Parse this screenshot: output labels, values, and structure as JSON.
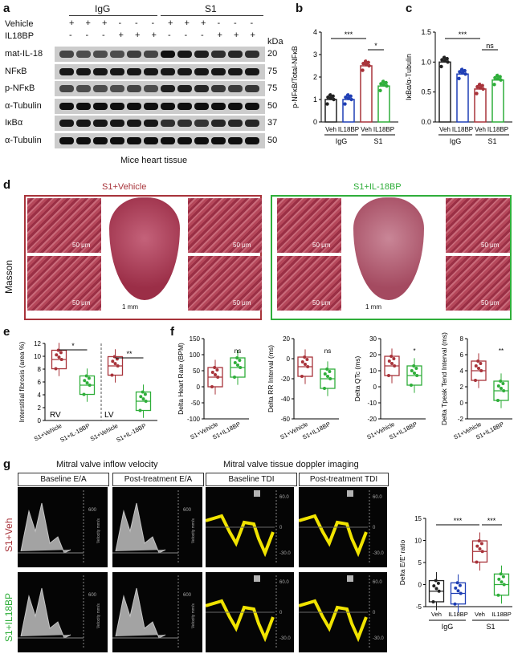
{
  "panels": {
    "a": "a",
    "b": "b",
    "c": "c",
    "d": "d",
    "e": "e",
    "f": "f",
    "g": "g"
  },
  "panel_a": {
    "group_igg": "IgG",
    "group_s1": "S1",
    "row_vehicle": "Vehicle",
    "row_il18bp": "IL18BP",
    "vehicle_signs": [
      "+",
      "+",
      "+",
      "-",
      "-",
      "-",
      "+",
      "+",
      "+",
      "-",
      "-",
      "-"
    ],
    "il18bp_signs": [
      "-",
      "-",
      "-",
      "+",
      "+",
      "+",
      "-",
      "-",
      "-",
      "+",
      "+",
      "+"
    ],
    "kda": "kDa",
    "blots": [
      {
        "label": "mat-IL-18",
        "kda": "20"
      },
      {
        "label": "NFκB",
        "kda": "75"
      },
      {
        "label": "p-NFκB",
        "kda": "75"
      },
      {
        "label": "α-Tubulin",
        "kda": "50"
      },
      {
        "label": "IκBα",
        "kda": "37"
      },
      {
        "label": "α-Tubulin",
        "kda": "50"
      }
    ],
    "caption": "Mice heart tissue"
  },
  "chart_data": [
    {
      "id": "b",
      "type": "bar",
      "ylabel": "p-NFκB/Total-NFκB",
      "ylim": [
        0,
        4
      ],
      "yticks": [
        "0",
        "1",
        "2",
        "3",
        "4"
      ],
      "categories": [
        "Veh",
        "IL18BP",
        "Veh",
        "IL18BP"
      ],
      "groups": [
        "IgG",
        "S1"
      ],
      "values": [
        1.0,
        1.0,
        2.5,
        1.6
      ],
      "sig": [
        "***",
        "*"
      ]
    },
    {
      "id": "c",
      "type": "bar",
      "ylabel": "IκBα/α-Tubulin",
      "ylim": [
        0,
        1.5
      ],
      "yticks": [
        "0.0",
        "0.5",
        "1.0",
        "1.5"
      ],
      "categories": [
        "Veh",
        "IL18BP",
        "Veh",
        "IL18BP"
      ],
      "groups": [
        "IgG",
        "S1"
      ],
      "values": [
        1.0,
        0.8,
        0.55,
        0.7
      ],
      "sig": [
        "***",
        "ns"
      ]
    },
    {
      "id": "e",
      "type": "box",
      "ylabel": "Interstitial fibrosis (area %)",
      "ylim": [
        0,
        12
      ],
      "yticks": [
        "0",
        "2",
        "4",
        "6",
        "8",
        "10",
        "12"
      ],
      "categories": [
        "S1+Vehicle",
        "S1+IL-18BP",
        "S1+Vehicle",
        "S1+IL-18BP"
      ],
      "regions": [
        "RV",
        "LV"
      ],
      "medians": [
        9.5,
        5.5,
        8.5,
        3.0
      ],
      "sig": [
        "*",
        "**"
      ]
    },
    {
      "id": "f1",
      "type": "box",
      "ylabel": "Delta Heart Rate (BPM)",
      "ylim": [
        -100,
        150
      ],
      "yticks": [
        "150",
        "100",
        "50",
        "0",
        "-50",
        "-100"
      ],
      "categories": [
        "S1+Vehicle",
        "S1+IL18BP"
      ],
      "medians": [
        30,
        60
      ],
      "sig": "ns"
    },
    {
      "id": "f2",
      "type": "box",
      "ylabel": "Delta RR Interval (ms)",
      "ylim": [
        -60,
        20
      ],
      "yticks": [
        "20",
        "0",
        "-20",
        "-40",
        "-60"
      ],
      "categories": [
        "S1+Vehicle",
        "S1+IL18BP"
      ],
      "medians": [
        -8,
        -20
      ],
      "sig": "ns"
    },
    {
      "id": "f3",
      "type": "box",
      "ylabel": "Delta QTc (ms)",
      "ylim": [
        -20,
        30
      ],
      "yticks": [
        "30",
        "20",
        "10",
        "0",
        "-10",
        "-20"
      ],
      "categories": [
        "S1+Vehicle",
        "S1+IL18BP"
      ],
      "medians": [
        13,
        7
      ],
      "sig": "*"
    },
    {
      "id": "f4",
      "type": "box",
      "ylabel": "Delta Tpeak Tend Interval (ms)",
      "ylim": [
        -2,
        8
      ],
      "yticks": [
        "8",
        "6",
        "4",
        "2",
        "0",
        "-2"
      ],
      "categories": [
        "S1+Vehicle",
        "S1+IL18BP"
      ],
      "medians": [
        4,
        1.5
      ],
      "sig": "**"
    },
    {
      "id": "g",
      "type": "box",
      "ylabel": "Delta E/E' ratio",
      "ylim": [
        -5,
        15
      ],
      "yticks": [
        "15",
        "10",
        "5",
        "0",
        "-5"
      ],
      "categories": [
        "Veh",
        "IL18BP",
        "Veh",
        "IL18BP"
      ],
      "groups": [
        "IgG",
        "S1"
      ],
      "medians": [
        -1.5,
        -2,
        7.5,
        0
      ],
      "sig": [
        "***",
        "***"
      ]
    }
  ],
  "panel_d": {
    "left_title": "S1+Vehicle",
    "right_title": "S1+IL-18BP",
    "stain": "Masson",
    "scale_small": "50 μm",
    "scale_big": "1 mm"
  },
  "panel_g": {
    "title_left": "Mitral valve inflow velocity",
    "title_right": "Mitral valve tissue doppler imaging",
    "tags": [
      "Baseline  E/A",
      "Post-treatment  E/A",
      "Baseline  TDI",
      "Post-treatment  TDI"
    ],
    "row_top": "S1+Veh",
    "row_bottom": "S1+IL18BP",
    "velocity_label": "Velocity mm/s"
  },
  "colors": {
    "igg_veh": "#222222",
    "igg_bp": "#1f3fb5",
    "s1_veh": "#a8333a",
    "s1_bp": "#2fae3a",
    "masson_red": "#a3384a"
  }
}
